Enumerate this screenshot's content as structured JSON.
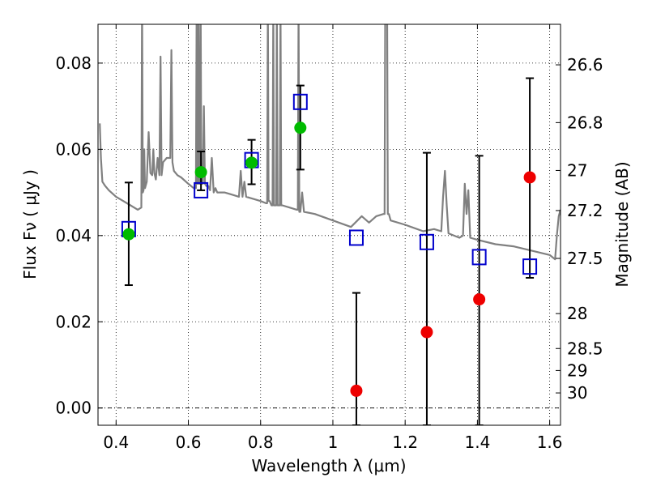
{
  "chart_data": {
    "type": "scatter",
    "xlabel": "Wavelength  λ (μm)",
    "ylabel": "Flux  Fν  ( μJy )",
    "y2label": "Magnitude (AB)",
    "xlim": [
      0.35,
      1.63
    ],
    "ylim": [
      -0.004,
      0.089
    ],
    "xticks": [
      0.4,
      0.6,
      0.8,
      1.0,
      1.2,
      1.4,
      1.6
    ],
    "xtick_labels": [
      "0.4",
      "0.6",
      "0.8",
      "1",
      "1.2",
      "1.4",
      "1.6"
    ],
    "yticks": [
      0.0,
      0.02,
      0.04,
      0.06,
      0.08
    ],
    "ytick_labels": [
      "0.00",
      "0.02",
      "0.04",
      "0.06",
      "0.08"
    ],
    "y2ticks": [
      {
        "label": "26.6",
        "flux": 0.0796
      },
      {
        "label": "26.8",
        "flux": 0.0662
      },
      {
        "label": "27",
        "flux": 0.0551
      },
      {
        "label": "27.2",
        "flux": 0.0458
      },
      {
        "label": "27.5",
        "flux": 0.0347
      },
      {
        "label": "28",
        "flux": 0.0219
      },
      {
        "label": "28.5",
        "flux": 0.0138
      },
      {
        "label": "29",
        "flux": 0.0087
      },
      {
        "label": "30",
        "flux": 0.0035
      }
    ],
    "grid": true,
    "zero_line": true,
    "model_spectrum": {
      "color": "#808080",
      "x": [
        0.355,
        0.358,
        0.362,
        0.37,
        0.38,
        0.4,
        0.42,
        0.44,
        0.46,
        0.47,
        0.472,
        0.474,
        0.476,
        0.478,
        0.48,
        0.485,
        0.49,
        0.495,
        0.5,
        0.503,
        0.506,
        0.51,
        0.515,
        0.52,
        0.523,
        0.526,
        0.53,
        0.54,
        0.55,
        0.553,
        0.556,
        0.56,
        0.57,
        0.58,
        0.6,
        0.615,
        0.62,
        0.623,
        0.626,
        0.628,
        0.631,
        0.634,
        0.637,
        0.64,
        0.643,
        0.646,
        0.65,
        0.655,
        0.66,
        0.665,
        0.67,
        0.675,
        0.68,
        0.7,
        0.72,
        0.74,
        0.745,
        0.75,
        0.755,
        0.76,
        0.78,
        0.8,
        0.815,
        0.82,
        0.825,
        0.83,
        0.835,
        0.84,
        0.845,
        0.85,
        0.855,
        0.86,
        0.88,
        0.9,
        0.905,
        0.91,
        0.915,
        0.92,
        0.95,
        1.0,
        1.05,
        1.08,
        1.1,
        1.12,
        1.14,
        1.145,
        1.15,
        1.155,
        1.16,
        1.2,
        1.25,
        1.28,
        1.3,
        1.305,
        1.31,
        1.315,
        1.32,
        1.35,
        1.36,
        1.365,
        1.37,
        1.375,
        1.38,
        1.4,
        1.45,
        1.5,
        1.55,
        1.6,
        1.615,
        1.62,
        1.625,
        1.63
      ],
      "y": [
        0.066,
        0.058,
        0.0525,
        0.0515,
        0.0505,
        0.049,
        0.048,
        0.047,
        0.046,
        0.0465,
        0.095,
        0.05,
        0.0505,
        0.06,
        0.051,
        0.0525,
        0.064,
        0.0545,
        0.054,
        0.06,
        0.0545,
        0.053,
        0.058,
        0.054,
        0.0815,
        0.054,
        0.057,
        0.058,
        0.058,
        0.083,
        0.057,
        0.055,
        0.054,
        0.0535,
        0.052,
        0.051,
        0.051,
        0.095,
        0.052,
        0.095,
        0.052,
        0.095,
        0.052,
        0.052,
        0.07,
        0.052,
        0.0515,
        0.0515,
        0.0505,
        0.058,
        0.05,
        0.051,
        0.05,
        0.05,
        0.0495,
        0.049,
        0.055,
        0.049,
        0.0525,
        0.049,
        0.0485,
        0.048,
        0.0475,
        0.095,
        0.048,
        0.047,
        0.095,
        0.047,
        0.095,
        0.047,
        0.095,
        0.047,
        0.0465,
        0.046,
        0.095,
        0.0455,
        0.05,
        0.0455,
        0.045,
        0.0435,
        0.042,
        0.0445,
        0.043,
        0.0445,
        0.045,
        0.095,
        0.095,
        0.045,
        0.0435,
        0.0425,
        0.041,
        0.0415,
        0.041,
        0.049,
        0.055,
        0.047,
        0.0405,
        0.0395,
        0.04,
        0.052,
        0.045,
        0.0505,
        0.0395,
        0.039,
        0.038,
        0.0375,
        0.0365,
        0.0355,
        0.0345,
        0.04,
        0.0445,
        0.046
      ],
      "clipped": [
        0.472,
        0.623,
        0.628,
        0.634,
        0.82,
        0.835,
        0.845,
        0.855,
        0.905,
        1.145,
        1.15
      ]
    },
    "series": [
      {
        "marker": "open-square",
        "color": "#0000cc",
        "x": [
          0.435,
          0.635,
          0.775,
          0.91,
          1.065,
          1.26,
          1.405,
          1.545
        ],
        "y": [
          0.0415,
          0.0505,
          0.0575,
          0.071,
          0.0395,
          0.0385,
          0.035,
          0.0328
        ]
      },
      {
        "marker": "filled-circle",
        "color": "#00bb00",
        "x": [
          0.435,
          0.635,
          0.775,
          0.91
        ],
        "y": [
          0.0403,
          0.0547,
          0.0569,
          0.065
        ],
        "yerr_low": [
          0.0285,
          0.0505,
          0.0519,
          0.0553
        ],
        "yerr_high": [
          0.0523,
          0.0595,
          0.0622,
          0.0748
        ]
      },
      {
        "marker": "filled-circle",
        "color": "#ee0000",
        "x": [
          1.065,
          1.26,
          1.405,
          1.545
        ],
        "y": [
          0.004,
          0.0176,
          0.0252,
          0.0535
        ],
        "yerr_low": [
          -0.004,
          -0.004,
          -0.004,
          0.0302
        ],
        "yerr_high": [
          0.0267,
          0.0592,
          0.0585,
          0.0765
        ]
      }
    ]
  }
}
